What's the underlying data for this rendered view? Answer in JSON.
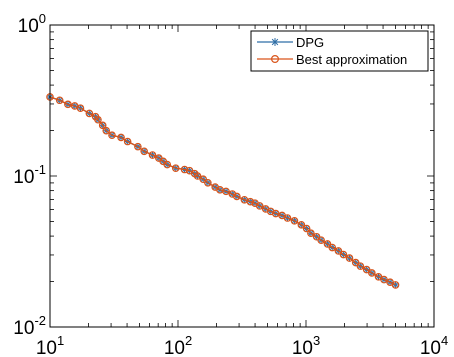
{
  "chart_data": {
    "type": "line",
    "title": "",
    "xlabel": "",
    "ylabel": "",
    "xscale": "log",
    "yscale": "log",
    "xlim": [
      10,
      10000
    ],
    "ylim": [
      0.01,
      1
    ],
    "grid": false,
    "legend_position": "top-right",
    "x_ticks": [
      {
        "value": 10,
        "base": "10",
        "exp": "1"
      },
      {
        "value": 100,
        "base": "10",
        "exp": "2"
      },
      {
        "value": 1000,
        "base": "10",
        "exp": "3"
      },
      {
        "value": 10000,
        "base": "10",
        "exp": "4"
      }
    ],
    "y_ticks": [
      {
        "value": 0.01,
        "base": "10",
        "exp": "-2"
      },
      {
        "value": 0.1,
        "base": "10",
        "exp": "-1"
      },
      {
        "value": 1,
        "base": "10",
        "exp": "0"
      }
    ],
    "x": [
      10.0,
      11.9,
      13.8,
      15.6,
      17.3,
      20.3,
      22.7,
      23.7,
      25.8,
      27.5,
      30.5,
      35.9,
      40.4,
      48.6,
      54.4,
      63.2,
      70.8,
      76.6,
      82.4,
      96.0,
      112.5,
      123.2,
      135.0,
      142.2,
      157.4,
      171.1,
      195.1,
      212.8,
      237.3,
      265.7,
      288.3,
      330.0,
      367.2,
      399.6,
      434.9,
      484.3,
      530.2,
      580.4,
      650.4,
      717.1,
      812.3,
      919.8,
      1011.0,
      1092.0,
      1210.0,
      1313.0,
      1471.0,
      1604.0,
      1791.0,
      1961.0,
      2187.0,
      2444.0,
      2661.0,
      2976.0,
      3269.0,
      3684.0,
      4069.0,
      4539.0,
      5007.0
    ],
    "series": [
      {
        "name": "DPG",
        "color": "#2f6ea6",
        "marker": "asterisk",
        "values": [
          0.3337,
          0.3174,
          0.2983,
          0.291,
          0.2813,
          0.2598,
          0.247,
          0.2358,
          0.2166,
          0.1996,
          0.1862,
          0.1801,
          0.1692,
          0.1565,
          0.1458,
          0.1377,
          0.1315,
          0.1251,
          0.119,
          0.1127,
          0.1104,
          0.1085,
          0.1037,
          0.1,
          0.0952,
          0.0902,
          0.0845,
          0.081,
          0.0791,
          0.076,
          0.0732,
          0.0696,
          0.0676,
          0.0661,
          0.0634,
          0.0605,
          0.0583,
          0.0564,
          0.0548,
          0.0527,
          0.0505,
          0.0475,
          0.0449,
          0.0418,
          0.0396,
          0.0376,
          0.0355,
          0.0336,
          0.0319,
          0.0302,
          0.0286,
          0.0267,
          0.0253,
          0.024,
          0.0228,
          0.0215,
          0.0206,
          0.0198,
          0.019
        ]
      },
      {
        "name": "Best approximation",
        "color": "#d9541a",
        "marker": "circle",
        "values": [
          0.3337,
          0.3174,
          0.2983,
          0.291,
          0.2813,
          0.2598,
          0.247,
          0.2358,
          0.2166,
          0.1996,
          0.1862,
          0.1801,
          0.1692,
          0.1565,
          0.1458,
          0.1377,
          0.1315,
          0.1251,
          0.119,
          0.1127,
          0.1104,
          0.1085,
          0.1037,
          0.1,
          0.0952,
          0.0902,
          0.0845,
          0.081,
          0.0791,
          0.076,
          0.0732,
          0.0696,
          0.0676,
          0.0661,
          0.0634,
          0.0605,
          0.0583,
          0.0564,
          0.0548,
          0.0527,
          0.0505,
          0.0475,
          0.0449,
          0.0418,
          0.0396,
          0.0376,
          0.0355,
          0.0336,
          0.0319,
          0.0302,
          0.0286,
          0.0267,
          0.0253,
          0.024,
          0.0228,
          0.0215,
          0.0206,
          0.0198,
          0.019
        ]
      }
    ]
  }
}
